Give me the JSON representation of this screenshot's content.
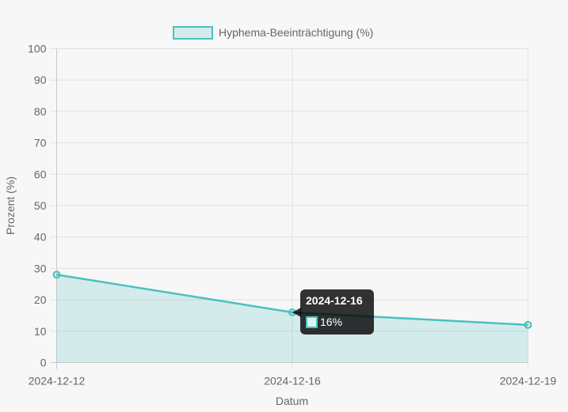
{
  "chart_data": {
    "type": "line",
    "x": [
      "2024-12-12",
      "2024-12-16",
      "2024-12-19"
    ],
    "series": [
      {
        "name": "Hyphema-Beeinträchtigung (%)",
        "values": [
          28,
          16,
          12
        ],
        "color": "#4bc0c0",
        "fill": "rgba(75,192,192,0.2)"
      }
    ],
    "xlabel": "Datum",
    "ylabel": "Prozent (%)",
    "ylim": [
      0,
      100
    ],
    "yticks": [
      0,
      10,
      20,
      30,
      40,
      50,
      60,
      70,
      80,
      90,
      100
    ],
    "grid": true,
    "legend": "top-center",
    "tooltip": {
      "index": 1,
      "title": "2024-12-16",
      "text": "16%"
    }
  }
}
